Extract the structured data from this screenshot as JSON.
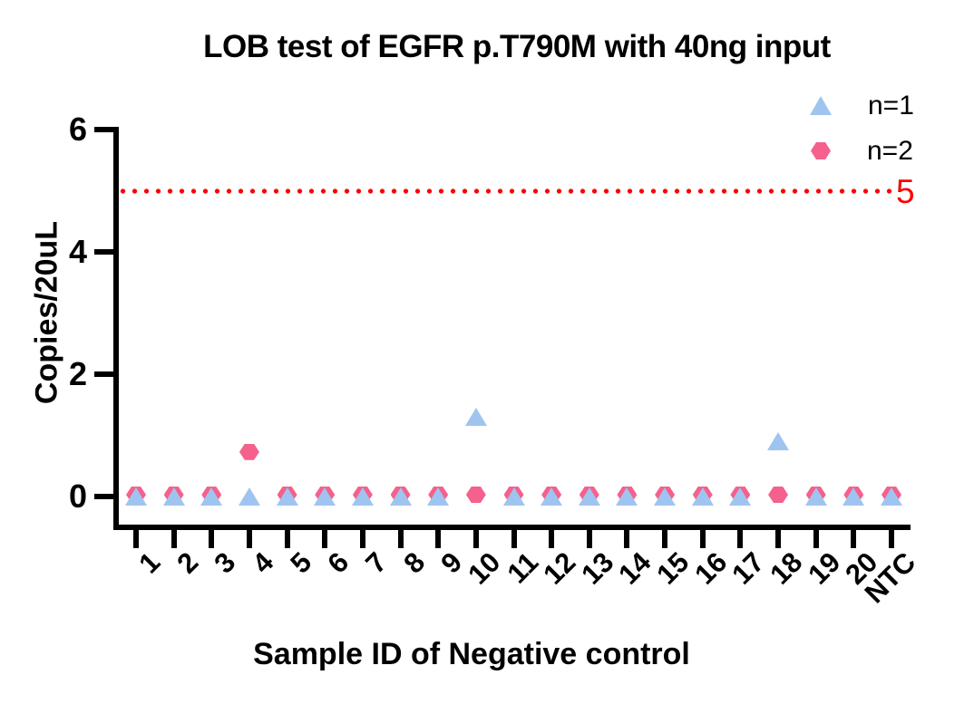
{
  "chart_data": {
    "type": "scatter",
    "title": "LOB test of EGFR p.T790M with 40ng input",
    "xlabel": "Sample ID of Negative control",
    "ylabel": "Copies/20uL",
    "categories": [
      "1",
      "2",
      "3",
      "4",
      "5",
      "6",
      "7",
      "8",
      "9",
      "10",
      "11",
      "12",
      "13",
      "14",
      "15",
      "16",
      "17",
      "18",
      "19",
      "20",
      "NTC"
    ],
    "yticks": [
      0,
      2,
      4,
      6
    ],
    "ylim": [
      -0.5,
      6.1
    ],
    "grid": false,
    "legend_position": "top-right",
    "series": [
      {
        "name": "n=1",
        "marker": "triangle",
        "color": "#a0c4f0",
        "values": [
          0,
          0,
          0,
          0,
          0,
          0,
          0,
          0,
          0,
          1.3,
          0,
          0,
          0,
          0,
          0,
          0,
          0,
          0.9,
          0,
          0,
          0
        ]
      },
      {
        "name": "n=2",
        "marker": "hexagon",
        "color": "#f4618c",
        "values": [
          0,
          0,
          0,
          0.7,
          0,
          0,
          0,
          0,
          0,
          0,
          0,
          0,
          0,
          0,
          0,
          0,
          0,
          0,
          0,
          0,
          0
        ]
      }
    ],
    "reference_line": {
      "value": 5,
      "label": "5",
      "color": "#fa0000",
      "style": "dotted"
    },
    "axis_color": "#000000",
    "text_color": "#000000"
  }
}
